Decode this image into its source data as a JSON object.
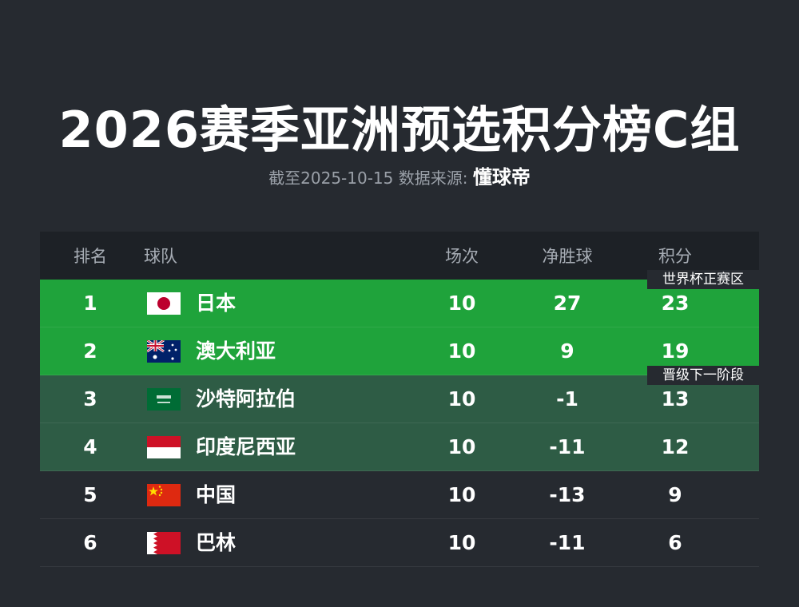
{
  "header": {
    "title": "2026赛季亚洲预选积分榜C组",
    "subtitle": "截至2025-10-15 数据来源:",
    "source": "懂球帝"
  },
  "table": {
    "columns": [
      "排名",
      "球队",
      "场次",
      "净胜球",
      "积分"
    ],
    "rows": [
      [
        1,
        "日本",
        10,
        27,
        23
      ],
      [
        2,
        "澳大利亚",
        10,
        9,
        19
      ],
      [
        3,
        "沙特阿拉伯",
        10,
        -1,
        13
      ],
      [
        4,
        "印度尼西亚",
        10,
        -11,
        12
      ],
      [
        5,
        "中国",
        10,
        -13,
        9
      ],
      [
        6,
        "巴林",
        10,
        -11,
        6
      ]
    ],
    "zones": [
      "世界杯正赛区",
      "晋级下一阶段"
    ]
  }
}
